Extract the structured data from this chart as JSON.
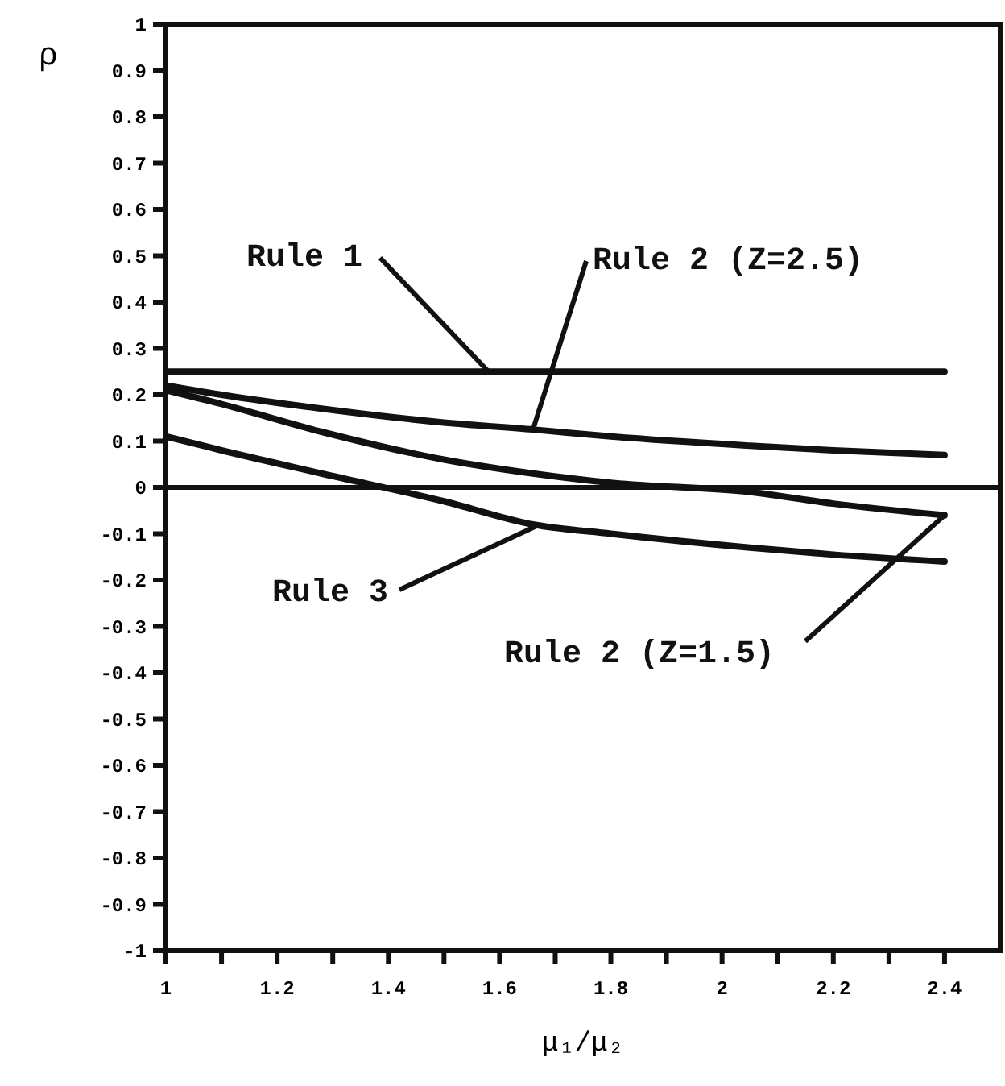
{
  "chart_data": {
    "type": "line",
    "xlabel": "μ₁/μ₂",
    "ylabel": "ρ",
    "xlim": [
      1,
      2.5
    ],
    "ylim": [
      -1,
      1
    ],
    "xticks": [
      1,
      {
        "value": 1.1,
        "label": null
      },
      1.2,
      {
        "value": 1.3,
        "label": null
      },
      1.4,
      {
        "value": 1.5,
        "label": null
      },
      1.6,
      {
        "value": 1.7,
        "label": null
      },
      1.8,
      {
        "value": 1.9,
        "label": null
      },
      2,
      {
        "value": 2.1,
        "label": null
      },
      2.2,
      {
        "value": 2.3,
        "label": null
      },
      2.4
    ],
    "yticks": [
      -1,
      -0.9,
      -0.8,
      -0.7,
      -0.6,
      -0.5,
      -0.4,
      -0.3,
      -0.2,
      -0.1,
      0,
      0.1,
      0.2,
      0.3,
      0.4,
      0.5,
      0.6,
      0.7,
      0.8,
      0.9,
      1
    ],
    "grid": false,
    "legend": false,
    "marker": "none",
    "line_style": "solid",
    "x": [
      1,
      1.1,
      1.28,
      1.5,
      1.66,
      1.8,
      2.05,
      2.2,
      2.4
    ],
    "series": [
      {
        "name": "Rule 1",
        "color": "#111111",
        "values": [
          0.25,
          0.25,
          0.25,
          0.25,
          0.25,
          0.25,
          0.25,
          0.25,
          0.25
        ]
      },
      {
        "name": "Rule 2 (Z=2.5)",
        "color": "#111111",
        "values": [
          0.22,
          0.2,
          0.17,
          0.14,
          0.125,
          0.11,
          0.09,
          0.08,
          0.07
        ]
      },
      {
        "name": "Rule 3",
        "color": "#111111",
        "values": [
          0.11,
          0.08,
          0.03,
          -0.03,
          -0.08,
          -0.1,
          -0.13,
          -0.145,
          -0.16
        ]
      },
      {
        "name": "Rule 2 (Z=1.5)",
        "color": "#111111",
        "values": [
          0.21,
          0.18,
          0.12,
          0.06,
          0.03,
          0.01,
          -0.01,
          -0.035,
          -0.06
        ]
      }
    ],
    "ref_lines": [
      {
        "axis": "y",
        "value": 0,
        "color": "#111111"
      }
    ]
  }
}
